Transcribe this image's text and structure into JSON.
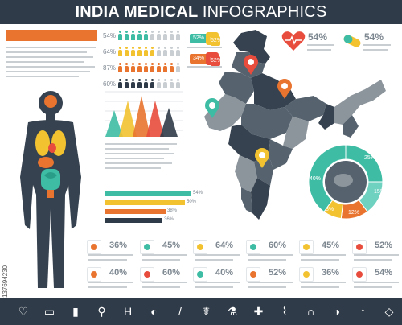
{
  "header": {
    "title_bold": "INDIA MEDICAL",
    "title_thin": "INFOGRAPHICS"
  },
  "people_chart": {
    "rows": [
      {
        "pct": "54%",
        "color": "#3ebda4"
      },
      {
        "pct": "64%",
        "color": "#f2c230"
      },
      {
        "pct": "87%",
        "color": "#e8742f"
      },
      {
        "pct": "60%",
        "color": "#2f3b48"
      }
    ]
  },
  "small_badges": [
    {
      "value": "52%",
      "color": "#3ebda4"
    },
    {
      "value": "34%",
      "color": "#e8742f"
    }
  ],
  "badge_icons": [
    {
      "icon": "medicine-bottle-icon",
      "color": "#f2c230"
    },
    {
      "icon": "pill-bottle-icon",
      "color": "#e74c3c"
    }
  ],
  "badge_pcts": [
    "52%",
    "62%"
  ],
  "top_right": {
    "heart_pct": "54%",
    "pill_pct": "54%"
  },
  "triangle_chart": {
    "type": "bar",
    "values": [
      55,
      75,
      85,
      75,
      60
    ],
    "colors": [
      "#3ebda4",
      "#f2c230",
      "#e8742f",
      "#e74c3c",
      "#2f3b48"
    ]
  },
  "hbar_chart": {
    "type": "bar",
    "values": [
      54,
      50,
      38,
      36
    ],
    "labels": [
      "54%",
      "50%",
      "38%",
      "36%"
    ],
    "colors": [
      "#3ebda4",
      "#f2c230",
      "#e8742f",
      "#2f3b48"
    ]
  },
  "donut_chart": {
    "type": "pie",
    "labels": [
      "25%",
      "15%",
      "12%",
      "8%",
      "40%"
    ],
    "values": [
      25,
      15,
      12,
      8,
      40
    ],
    "colors": [
      "#3ebda4",
      "#6fd1c0",
      "#e8742f",
      "#f2c230",
      "#3ebda4"
    ]
  },
  "stats_grid": [
    {
      "pct": "36%",
      "icon": "brain-icon"
    },
    {
      "pct": "45%",
      "icon": "spine-icon"
    },
    {
      "pct": "64%",
      "icon": "lungs-icon"
    },
    {
      "pct": "60%",
      "icon": "liver-icon"
    },
    {
      "pct": "45%",
      "icon": "liver-yellow-icon"
    },
    {
      "pct": "52%",
      "icon": "intestine-icon"
    },
    {
      "pct": "40%",
      "icon": "kidney-icon"
    },
    {
      "pct": "60%",
      "icon": "heart-organ-icon"
    },
    {
      "pct": "40%",
      "icon": "teeth-icon"
    },
    {
      "pct": "52%",
      "icon": "stomach-icon"
    },
    {
      "pct": "36%",
      "icon": "bladder-icon"
    },
    {
      "pct": "54%",
      "icon": "uterus-icon"
    }
  ],
  "footer_icons": [
    "heartbeat-icon",
    "ambulance-icon",
    "medicine-bottle-icon",
    "microscope-icon",
    "hospital-icon",
    "pill-icon",
    "bandage-icon",
    "caduceus-icon",
    "test-tube-icon",
    "first-aid-kit-icon",
    "thermometer-icon",
    "stethoscope-icon",
    "capsule-icon",
    "syringe-icon",
    "tooth-icon"
  ],
  "stock_id": "137694230",
  "map_colors": {
    "dark": "#36424f",
    "mid": "#56636f",
    "light": "#8d959c"
  }
}
